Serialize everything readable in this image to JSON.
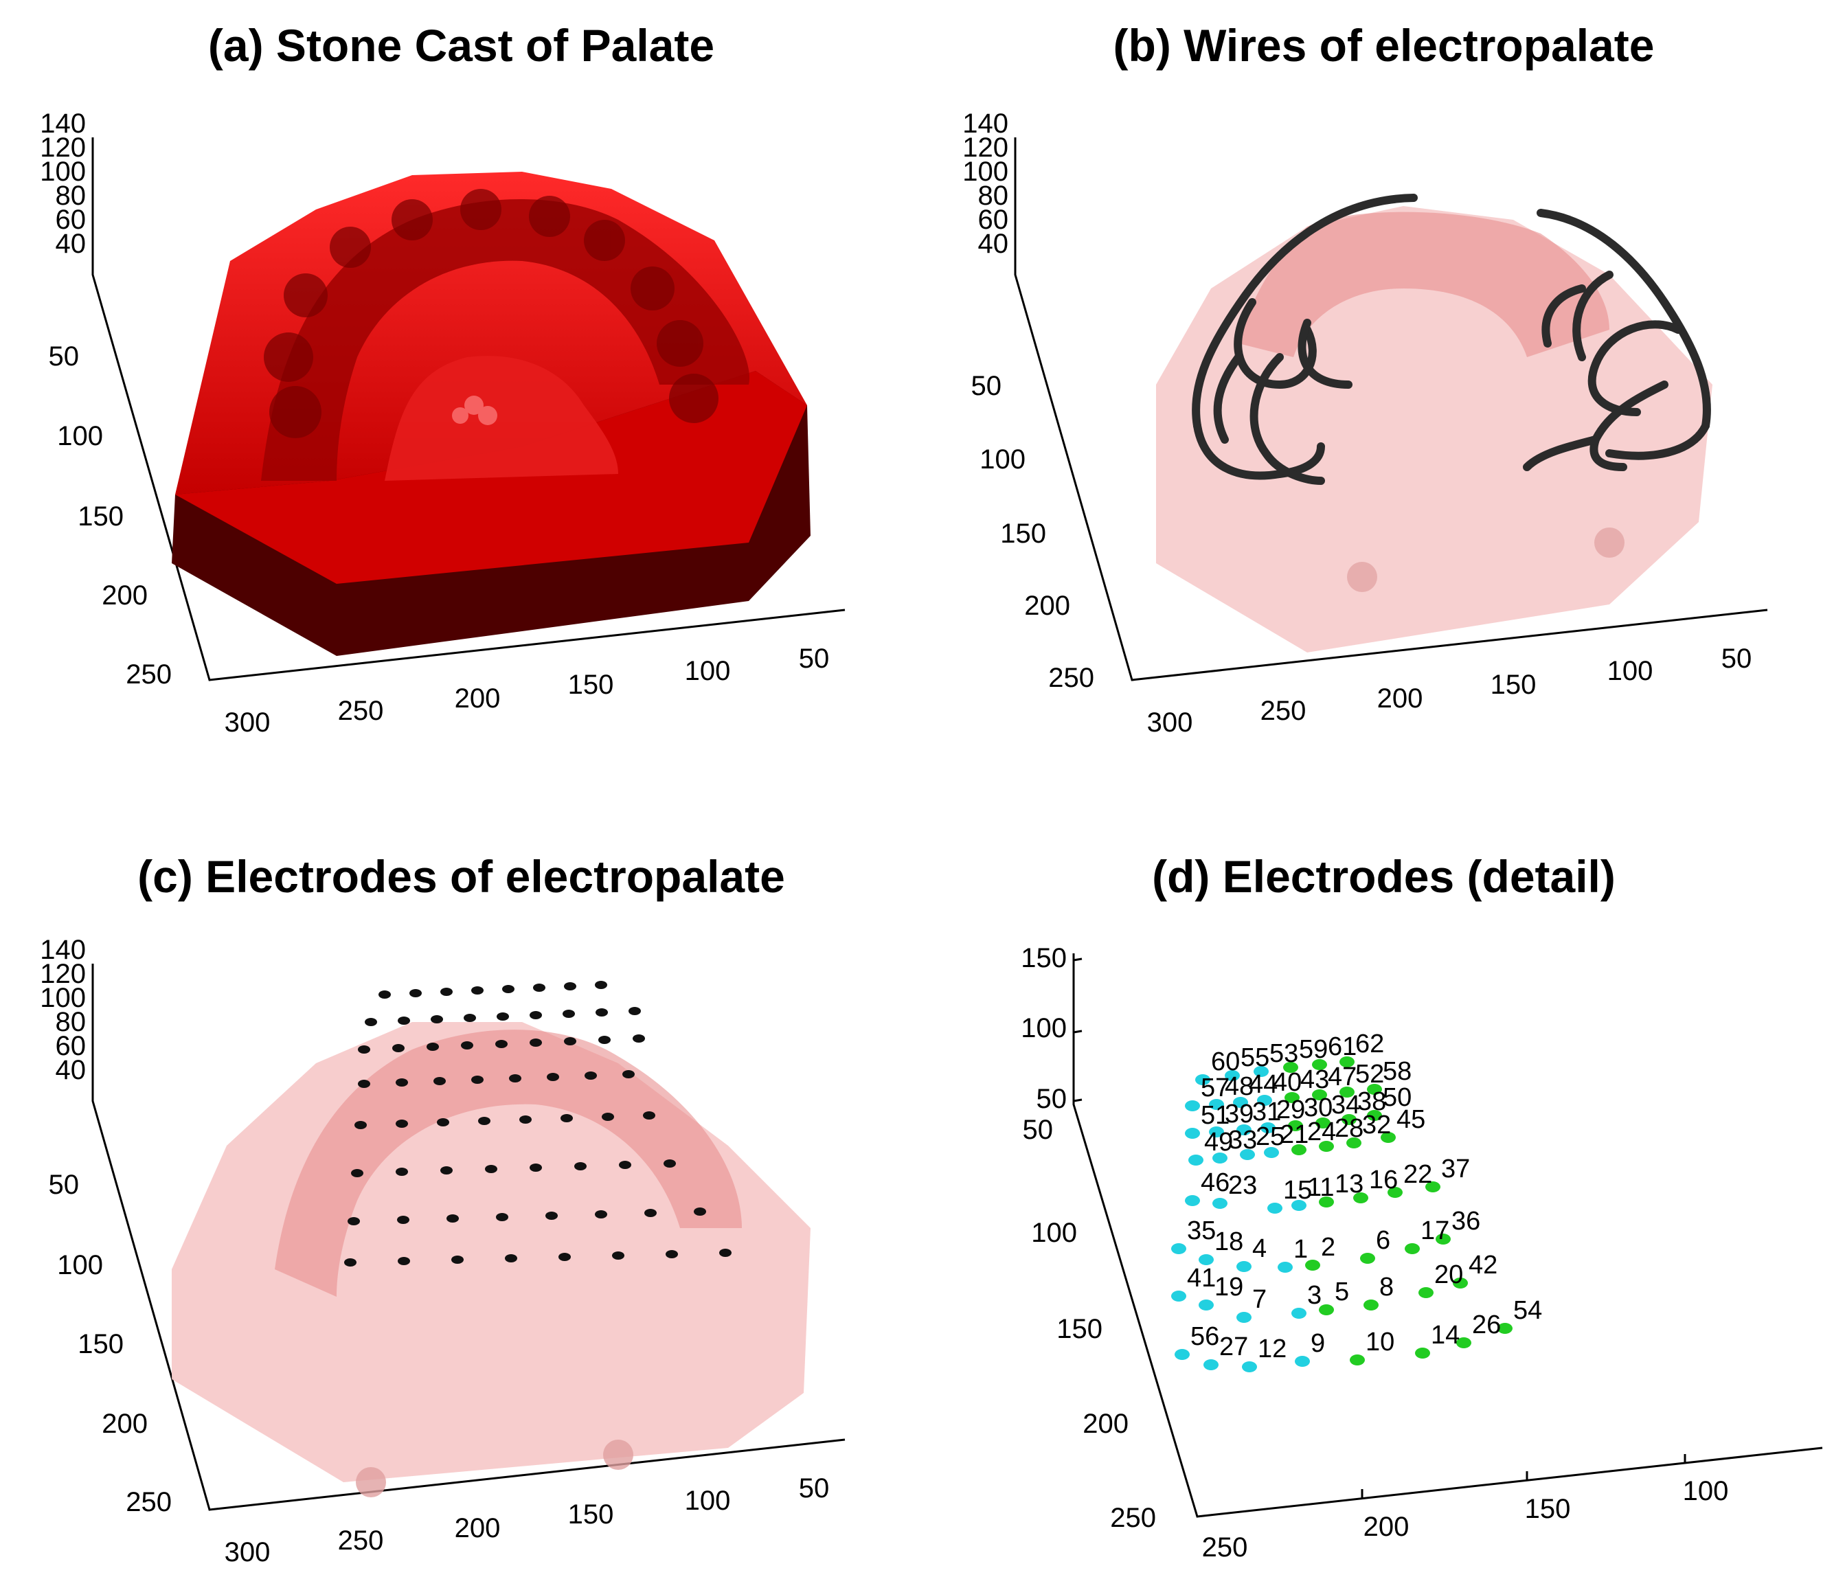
{
  "panels": [
    {
      "id": "a",
      "title": "(a) Stone Cast of Palate",
      "z_ticks": [
        "140",
        "120",
        "100",
        "80",
        "60",
        "40"
      ],
      "y_ticks": [
        "50",
        "100",
        "150",
        "200",
        "250"
      ],
      "x_ticks": [
        "300",
        "250",
        "200",
        "150",
        "100",
        "50"
      ],
      "color": "#e00000"
    },
    {
      "id": "b",
      "title": "(b) Wires of electropalate",
      "z_ticks": [
        "140",
        "120",
        "100",
        "80",
        "60",
        "40"
      ],
      "y_ticks": [
        "50",
        "100",
        "150",
        "200",
        "250"
      ],
      "x_ticks": [
        "300",
        "250",
        "200",
        "150",
        "100",
        "50"
      ],
      "color": "#f4c0c0"
    },
    {
      "id": "c",
      "title": "(c) Electrodes of electropalate",
      "z_ticks": [
        "140",
        "120",
        "100",
        "80",
        "60",
        "40"
      ],
      "y_ticks": [
        "50",
        "100",
        "150",
        "200",
        "250"
      ],
      "x_ticks": [
        "300",
        "250",
        "200",
        "150",
        "100",
        "50"
      ],
      "color": "#f4c0c0"
    },
    {
      "id": "d",
      "title": "(d) Electrodes (detail)",
      "z_ticks": [
        "150",
        "100",
        "50"
      ],
      "y_ticks": [
        "50",
        "100",
        "150",
        "200",
        "250"
      ],
      "x_ticks": [
        "250",
        "200",
        "150",
        "100"
      ],
      "colors": {
        "left": "#22d0e0",
        "right": "#22cc22"
      }
    }
  ],
  "electrode_labels": [
    "60",
    "55",
    "53",
    "59",
    "61",
    "62",
    "57",
    "48",
    "44",
    "40",
    "43",
    "47",
    "52",
    "58",
    "51",
    "39",
    "31",
    "29",
    "30",
    "34",
    "38",
    "50",
    "49",
    "33",
    "25",
    "21",
    "24",
    "28",
    "32",
    "45",
    "46",
    "23",
    "15",
    "11",
    "13",
    "16",
    "22",
    "37",
    "35",
    "18",
    "4",
    "1",
    "2",
    "6",
    "17",
    "36",
    "41",
    "19",
    "7",
    "3",
    "5",
    "8",
    "20",
    "42",
    "56",
    "27",
    "12",
    "9",
    "10",
    "14",
    "26",
    "54"
  ]
}
